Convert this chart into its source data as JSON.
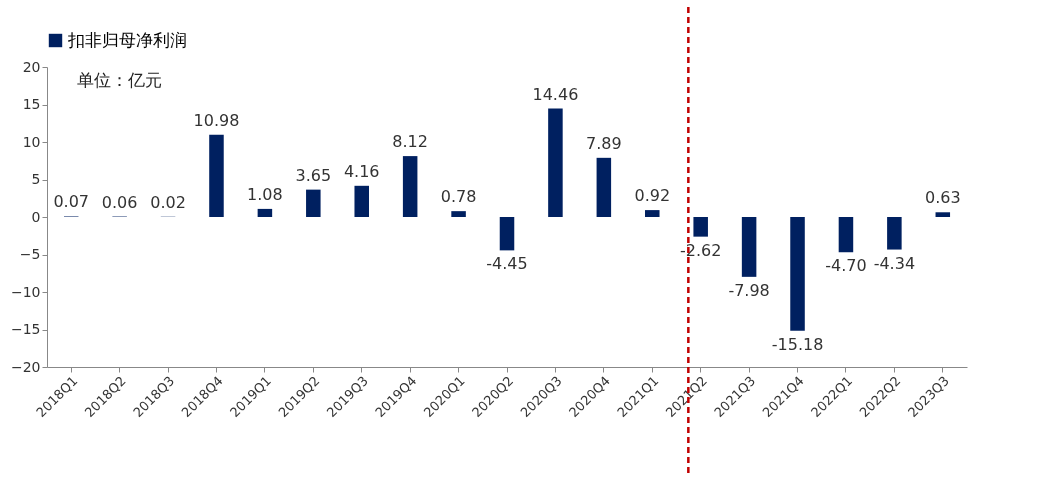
{
  "chart_data": {
    "type": "bar",
    "categories": [
      "2018Q1",
      "2018Q2",
      "2018Q3",
      "2018Q4",
      "2019Q1",
      "2019Q2",
      "2019Q3",
      "2019Q4",
      "2020Q1",
      "2020Q2",
      "2020Q3",
      "2020Q4",
      "2021Q1",
      "2021Q2",
      "2021Q3",
      "2021Q4",
      "2022Q1",
      "2022Q2",
      "2023Q3"
    ],
    "series": [
      {
        "name": "扣非归母净利润",
        "color": "#002060",
        "values": [
          0.07,
          0.06,
          0.02,
          10.98,
          1.08,
          3.65,
          4.16,
          8.12,
          0.78,
          -4.45,
          14.46,
          7.89,
          0.92,
          -2.62,
          -7.98,
          -15.18,
          -4.7,
          -4.34,
          0.63
        ],
        "value_labels": [
          "0.07",
          "0.06",
          "0.02",
          "10.98",
          "1.08",
          "3.65",
          "4.16",
          "8.12",
          "0.78",
          "-4.45",
          "14.46",
          "7.89",
          "0.92",
          "-2.62",
          "-7.98",
          "-15.18",
          "-4.70",
          "-4.34",
          "0.63"
        ]
      }
    ],
    "ylim": [
      -20,
      20
    ],
    "yticks": [
      -20,
      -15,
      -10,
      -5,
      0,
      5,
      10,
      15,
      20
    ],
    "annotations": [
      "单位：亿元"
    ],
    "ref_lines": [
      {
        "axis": "x",
        "value": "2021Q2",
        "color": "#c00000",
        "line_style": "dashed"
      }
    ],
    "legend": "top",
    "grid": false
  }
}
